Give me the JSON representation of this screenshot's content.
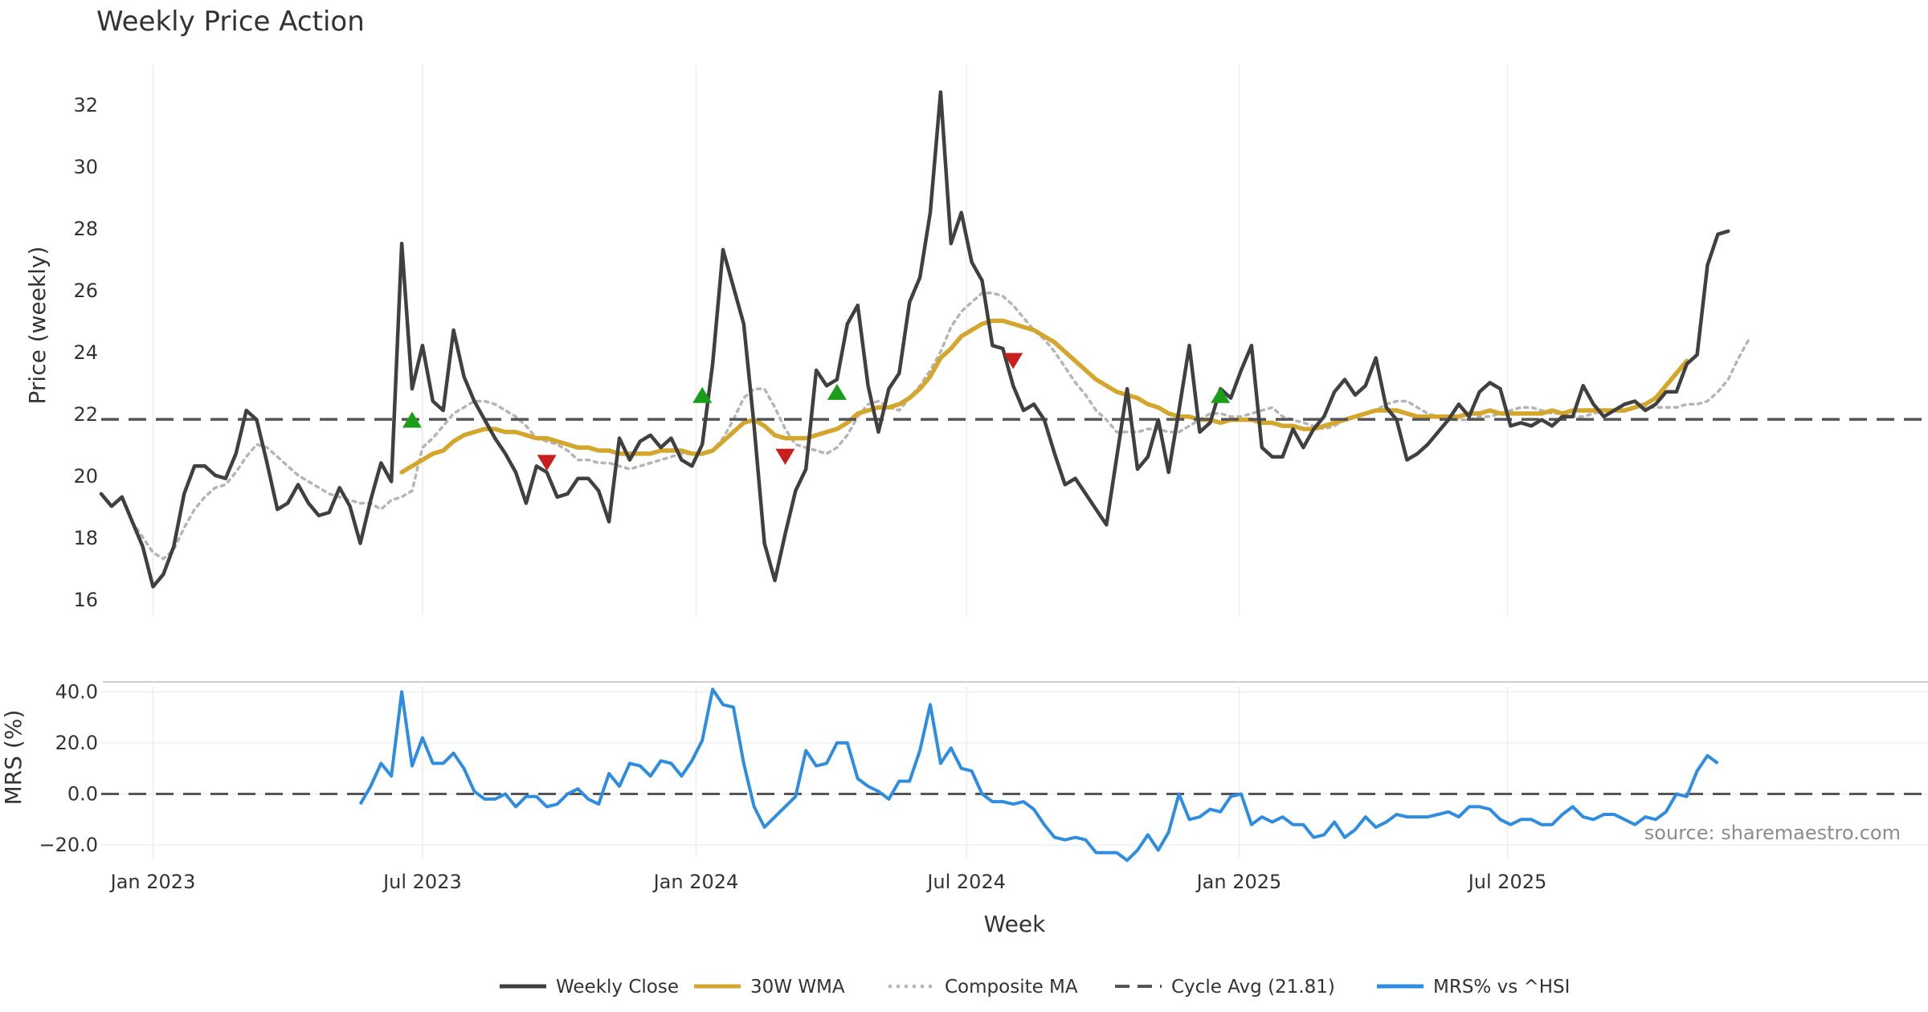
{
  "chart_data": {
    "type": "line",
    "title": "Weekly Price Action",
    "source_note": "source: sharemaestro.com",
    "xlabel": "Week",
    "x_ticks": [
      {
        "label": "Jan 2023",
        "week": 5
      },
      {
        "label": "Jul 2023",
        "week": 31
      },
      {
        "label": "Jan 2024",
        "week": 57.4
      },
      {
        "label": "Jul 2024",
        "week": 83.5
      },
      {
        "label": "Jan 2025",
        "week": 109.8
      },
      {
        "label": "Jul 2025",
        "week": 135.7
      }
    ],
    "price_panel": {
      "ylabel": "Price (weekly)",
      "ylim": [
        15.5,
        33.3
      ],
      "y_ticks": [
        16,
        18,
        20,
        22,
        24,
        26,
        28,
        30,
        32
      ],
      "series": [
        {
          "name": "Weekly Close",
          "color": "#404040",
          "values": [
            19.4,
            19.0,
            19.3,
            18.5,
            17.7,
            16.4,
            16.8,
            17.7,
            19.4,
            20.3,
            20.3,
            20.0,
            19.9,
            20.7,
            22.1,
            21.8,
            20.4,
            18.9,
            19.1,
            19.7,
            19.1,
            18.7,
            18.8,
            19.6,
            19.0,
            17.8,
            19.2,
            20.4,
            19.8,
            27.5,
            22.8,
            24.2,
            22.4,
            22.1,
            24.7,
            23.2,
            22.4,
            21.8,
            21.2,
            20.7,
            20.1,
            19.1,
            20.3,
            20.1,
            19.3,
            19.4,
            19.9,
            19.9,
            19.5,
            18.5,
            21.2,
            20.5,
            21.1,
            21.3,
            20.9,
            21.2,
            20.5,
            20.3,
            21.0,
            23.6,
            27.3,
            26.1,
            24.9,
            21.6,
            17.8,
            16.6,
            18.1,
            19.5,
            20.2,
            23.4,
            22.9,
            23.1,
            24.9,
            25.5,
            22.9,
            21.4,
            22.8,
            23.3,
            25.6,
            26.4,
            28.5,
            32.4,
            27.5,
            28.5,
            26.9,
            26.3,
            24.2,
            24.1,
            22.9,
            22.1,
            22.3,
            21.8,
            20.7,
            19.7,
            19.9,
            19.4,
            18.9,
            18.4,
            20.6,
            22.8,
            20.2,
            20.6,
            21.8,
            20.1,
            22.1,
            24.2,
            21.4,
            21.7,
            22.8,
            22.5,
            23.4,
            24.2,
            20.9,
            20.6,
            20.6,
            21.5,
            20.9,
            21.5,
            21.9,
            22.7,
            23.1,
            22.6,
            22.9,
            23.8,
            22.2,
            21.8,
            20.5,
            20.7,
            21.0,
            21.4,
            21.8,
            22.3,
            21.9,
            22.7,
            23.0,
            22.8,
            21.6,
            21.7,
            21.6,
            21.8,
            21.6,
            21.9,
            21.9,
            22.9,
            22.3,
            21.9,
            22.1,
            22.3,
            22.4,
            22.1,
            22.3,
            22.7,
            22.7,
            23.6,
            23.9,
            26.8,
            27.8,
            27.9
          ]
        },
        {
          "name": "30W WMA",
          "color": "#d4a72c",
          "start_week": 29,
          "values": [
            20.1,
            20.3,
            20.5,
            20.7,
            20.8,
            21.1,
            21.3,
            21.4,
            21.5,
            21.5,
            21.4,
            21.4,
            21.3,
            21.2,
            21.2,
            21.1,
            21.0,
            20.9,
            20.9,
            20.8,
            20.8,
            20.7,
            20.7,
            20.7,
            20.7,
            20.8,
            20.8,
            20.8,
            20.7,
            20.7,
            20.8,
            21.1,
            21.4,
            21.7,
            21.8,
            21.6,
            21.3,
            21.2,
            21.2,
            21.2,
            21.3,
            21.4,
            21.5,
            21.7,
            22.0,
            22.1,
            22.2,
            22.2,
            22.3,
            22.5,
            22.8,
            23.2,
            23.8,
            24.1,
            24.5,
            24.7,
            24.9,
            25.0,
            25.0,
            24.9,
            24.8,
            24.7,
            24.5,
            24.3,
            24.0,
            23.7,
            23.4,
            23.1,
            22.9,
            22.7,
            22.6,
            22.5,
            22.3,
            22.2,
            22.0,
            21.9,
            21.9,
            21.8,
            21.8,
            21.7,
            21.8,
            21.8,
            21.8,
            21.7,
            21.7,
            21.6,
            21.6,
            21.5,
            21.5,
            21.6,
            21.7,
            21.8,
            21.9,
            22.0,
            22.1,
            22.1,
            22.1,
            22.0,
            21.9,
            21.9,
            21.9,
            21.9,
            21.9,
            22.0,
            22.0,
            22.1,
            22.0,
            22.0,
            22.0,
            22.0,
            22.0,
            22.1,
            22.0,
            22.1,
            22.1,
            22.1,
            22.1,
            22.1,
            22.1,
            22.2,
            22.3,
            22.5,
            22.9,
            23.3,
            23.7
          ]
        },
        {
          "name": "Composite MA",
          "color": "#b5b5b5",
          "start_week": 3,
          "values": [
            18.5,
            18.0,
            17.5,
            17.3,
            17.6,
            18.3,
            18.9,
            19.3,
            19.6,
            19.7,
            20.1,
            20.6,
            21.0,
            20.9,
            20.6,
            20.3,
            20.0,
            19.8,
            19.6,
            19.4,
            19.3,
            19.2,
            19.1,
            19.1,
            18.9,
            19.2,
            19.3,
            19.5,
            20.9,
            21.2,
            21.6,
            22.0,
            22.2,
            22.4,
            22.4,
            22.3,
            22.1,
            21.9,
            21.6,
            21.2,
            21.1,
            21.0,
            20.8,
            20.5,
            20.5,
            20.4,
            20.4,
            20.3,
            20.2,
            20.3,
            20.4,
            20.5,
            20.6,
            20.7,
            20.7,
            20.7,
            20.8,
            21.2,
            21.8,
            22.5,
            22.8,
            22.8,
            22.2,
            21.5,
            21.0,
            20.9,
            20.8,
            20.7,
            20.9,
            21.3,
            21.9,
            22.3,
            22.4,
            22.2,
            22.1,
            22.5,
            22.9,
            23.4,
            24.0,
            24.8,
            25.3,
            25.6,
            25.9,
            25.9,
            25.8,
            25.5,
            25.1,
            24.7,
            24.4,
            24.0,
            23.5,
            23.0,
            22.6,
            22.1,
            21.8,
            21.4,
            21.4,
            21.4,
            21.5,
            21.5,
            21.4,
            21.4,
            21.6,
            21.8,
            22.0,
            22.0,
            21.9,
            21.9,
            22.0,
            22.1,
            22.2,
            21.9,
            21.8,
            21.7,
            21.6,
            21.5,
            21.6,
            21.8,
            21.9,
            22.0,
            22.1,
            22.3,
            22.4,
            22.4,
            22.2,
            22.0,
            21.9,
            21.8,
            21.8,
            21.8,
            21.9,
            21.9,
            22.0,
            22.1,
            22.2,
            22.2,
            22.1,
            22.0,
            22.0,
            21.9,
            21.9,
            22.0,
            22.1,
            22.1,
            22.1,
            22.2,
            22.2,
            22.2,
            22.2,
            22.2,
            22.3,
            22.3,
            22.4,
            22.7,
            23.1,
            23.8,
            24.4
          ]
        },
        {
          "name": "Cycle Avg (21.81)",
          "color": "#555555",
          "value": 21.81
        }
      ],
      "signals": [
        {
          "type": "buy",
          "week": 30,
          "value": 21.8,
          "color": "#1a9e1a"
        },
        {
          "type": "sell",
          "week": 43,
          "value": 20.4,
          "color": "#c81e1e"
        },
        {
          "type": "buy",
          "week": 58,
          "value": 22.6,
          "color": "#1a9e1a"
        },
        {
          "type": "sell",
          "week": 66,
          "value": 20.6,
          "color": "#c81e1e"
        },
        {
          "type": "buy",
          "week": 71,
          "value": 22.7,
          "color": "#1a9e1a"
        },
        {
          "type": "sell",
          "week": 88,
          "value": 23.7,
          "color": "#c81e1e"
        },
        {
          "type": "buy",
          "week": 108,
          "value": 22.6,
          "color": "#1a9e1a"
        }
      ]
    },
    "mrs_panel": {
      "ylabel": "MRS (%)",
      "ylim": [
        -25,
        42
      ],
      "y_ticks": [
        {
          "value": 40,
          "label": "40.0"
        },
        {
          "value": 20,
          "label": "20.0"
        },
        {
          "value": 0,
          "label": "0.0"
        },
        {
          "value": -20,
          "label": "−20.0"
        }
      ],
      "series": [
        {
          "name": "MRS% vs ^HSI",
          "color": "#2e8de0",
          "start_week": 25,
          "values": [
            -4,
            3,
            12,
            7,
            40,
            11,
            22,
            12,
            12,
            16,
            10,
            1,
            -2,
            -2,
            0,
            -5,
            -1,
            -1,
            -5,
            -4,
            0,
            2,
            -2,
            -4,
            8,
            3,
            12,
            11,
            7,
            13,
            12,
            7,
            13,
            21,
            41,
            35,
            34,
            12,
            -5,
            -13,
            -9,
            -5,
            -1,
            17,
            11,
            12,
            20,
            20,
            6,
            3,
            1,
            -2,
            5,
            5,
            17,
            35,
            12,
            18,
            10,
            9,
            0,
            -3,
            -3,
            -4,
            -3,
            -6,
            -12,
            -17,
            -18,
            -17,
            -18,
            -23,
            -23,
            -23,
            -26,
            -22,
            -16,
            -22,
            -15,
            0,
            -10,
            -9,
            -6,
            -7,
            -1,
            0,
            -12,
            -9,
            -11,
            -9,
            -12,
            -12,
            -17,
            -16,
            -11,
            -17,
            -14,
            -9,
            -13,
            -11,
            -8,
            -9,
            -9,
            -9,
            -8,
            -7,
            -9,
            -5,
            -5,
            -6,
            -10,
            -12,
            -10,
            -10,
            -12,
            -12,
            -8,
            -5,
            -9,
            -10,
            -8,
            -8,
            -10,
            -12,
            -9,
            -10,
            -7,
            0,
            -1,
            9,
            15,
            12
          ]
        },
        {
          "name": "zero-line",
          "color": "#555555",
          "value": 0
        }
      ]
    },
    "legend": {
      "placement": "bottom-center",
      "entries": [
        {
          "label": "Weekly Close",
          "style": "solid",
          "color": "#404040"
        },
        {
          "label": "30W WMA",
          "style": "solid",
          "color": "#d4a72c"
        },
        {
          "label": "Composite MA",
          "style": "dotted",
          "color": "#b5b5b5"
        },
        {
          "label": "Cycle Avg (21.81)",
          "style": "dashed",
          "color": "#555555"
        },
        {
          "label": "MRS% vs ^HSI",
          "style": "solid",
          "color": "#2e8de0"
        }
      ]
    }
  }
}
